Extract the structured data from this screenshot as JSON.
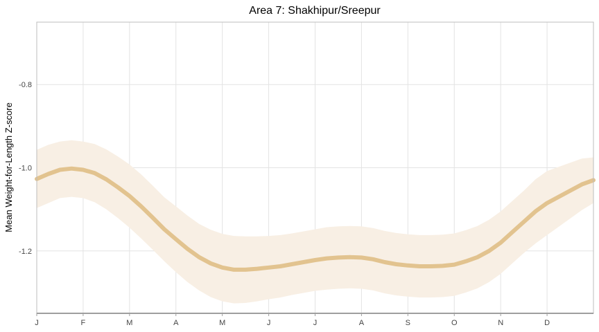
{
  "chart_data": {
    "type": "line",
    "title": "Area 7: Shakhipur/Sreepur",
    "xlabel": "",
    "ylabel": "Mean Weight-for-Length Z-score",
    "x_tick_labels": [
      "J",
      "F",
      "M",
      "A",
      "M",
      "J",
      "J",
      "A",
      "S",
      "O",
      "N",
      "D"
    ],
    "y_ticks": [
      -0.8,
      -1.0,
      -1.2
    ],
    "y_tick_labels": [
      "-0.8",
      "-1.0",
      "-1.2"
    ],
    "xlim": [
      0,
      12
    ],
    "ylim": [
      -1.35,
      -0.65
    ],
    "grid": true,
    "legend": "none",
    "colors": {
      "line": "#E2C38F",
      "band": "#F8EFE4",
      "grid": "#E3E3E3",
      "frame": "#BDBDBD"
    },
    "series": [
      {
        "x": [
          0.0,
          0.25,
          0.5,
          0.75,
          1.0,
          1.25,
          1.5,
          1.75,
          2.0,
          2.25,
          2.5,
          2.75,
          3.0,
          3.25,
          3.5,
          3.75,
          4.0,
          4.25,
          4.5,
          4.75,
          5.0,
          5.25,
          5.5,
          5.75,
          6.0,
          6.25,
          6.5,
          6.75,
          7.0,
          7.25,
          7.5,
          7.75,
          8.0,
          8.25,
          8.5,
          8.75,
          9.0,
          9.25,
          9.5,
          9.75,
          10.0,
          10.25,
          10.5,
          10.75,
          11.0,
          11.25,
          11.5,
          11.75,
          12.0
        ],
        "y": [
          -1.027,
          -1.015,
          -1.005,
          -1.002,
          -1.005,
          -1.013,
          -1.028,
          -1.047,
          -1.068,
          -1.093,
          -1.12,
          -1.148,
          -1.172,
          -1.195,
          -1.215,
          -1.23,
          -1.24,
          -1.245,
          -1.245,
          -1.243,
          -1.24,
          -1.237,
          -1.232,
          -1.227,
          -1.222,
          -1.218,
          -1.216,
          -1.215,
          -1.216,
          -1.22,
          -1.227,
          -1.232,
          -1.235,
          -1.237,
          -1.237,
          -1.236,
          -1.233,
          -1.225,
          -1.215,
          -1.2,
          -1.18,
          -1.155,
          -1.13,
          -1.105,
          -1.085,
          -1.07,
          -1.055,
          -1.04,
          -1.03
        ],
        "lower": [
          -1.097,
          -1.085,
          -1.073,
          -1.07,
          -1.073,
          -1.083,
          -1.1,
          -1.121,
          -1.144,
          -1.17,
          -1.197,
          -1.225,
          -1.251,
          -1.275,
          -1.295,
          -1.311,
          -1.321,
          -1.326,
          -1.325,
          -1.321,
          -1.316,
          -1.312,
          -1.306,
          -1.301,
          -1.296,
          -1.293,
          -1.291,
          -1.29,
          -1.291,
          -1.295,
          -1.302,
          -1.307,
          -1.31,
          -1.312,
          -1.312,
          -1.311,
          -1.308,
          -1.3,
          -1.29,
          -1.275,
          -1.255,
          -1.23,
          -1.205,
          -1.182,
          -1.162,
          -1.142,
          -1.122,
          -1.102,
          -1.085
        ],
        "upper": [
          -0.957,
          -0.945,
          -0.937,
          -0.934,
          -0.937,
          -0.943,
          -0.956,
          -0.973,
          -0.992,
          -1.016,
          -1.043,
          -1.071,
          -1.093,
          -1.115,
          -1.135,
          -1.149,
          -1.159,
          -1.164,
          -1.165,
          -1.165,
          -1.164,
          -1.162,
          -1.158,
          -1.153,
          -1.148,
          -1.143,
          -1.141,
          -1.14,
          -1.141,
          -1.145,
          -1.152,
          -1.157,
          -1.16,
          -1.162,
          -1.162,
          -1.161,
          -1.158,
          -1.15,
          -1.14,
          -1.125,
          -1.105,
          -1.08,
          -1.055,
          -1.028,
          -1.008,
          -0.998,
          -0.988,
          -0.978,
          -0.975
        ]
      }
    ]
  }
}
